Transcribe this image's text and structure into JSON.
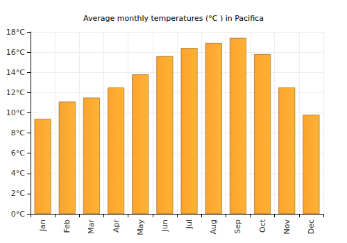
{
  "chart_data": {
    "type": "bar",
    "title": "Average monthly temperatures (°C ) in Pacifica",
    "categories": [
      "Jan",
      "Feb",
      "Mar",
      "Apr",
      "May",
      "Jun",
      "Jul",
      "Aug",
      "Sep",
      "Oct",
      "Nov",
      "Dec"
    ],
    "values": [
      9.4,
      11.1,
      11.5,
      12.5,
      13.8,
      15.6,
      16.4,
      16.9,
      17.4,
      15.8,
      12.5,
      9.8
    ],
    "color": "#fca32f",
    "ylim": [
      0,
      18
    ],
    "yticks": [
      {
        "value": 0,
        "label": "0°C"
      },
      {
        "value": 2,
        "label": "2°C"
      },
      {
        "value": 4,
        "label": "4°C"
      },
      {
        "value": 6,
        "label": "6°C"
      },
      {
        "value": 8,
        "label": "8°C"
      },
      {
        "value": 10,
        "label": "10°C"
      },
      {
        "value": 12,
        "label": "12°C"
      },
      {
        "value": 14,
        "label": "14°C"
      },
      {
        "value": 16,
        "label": "16°C"
      },
      {
        "value": 18,
        "label": "18°C"
      }
    ],
    "grid": true
  }
}
